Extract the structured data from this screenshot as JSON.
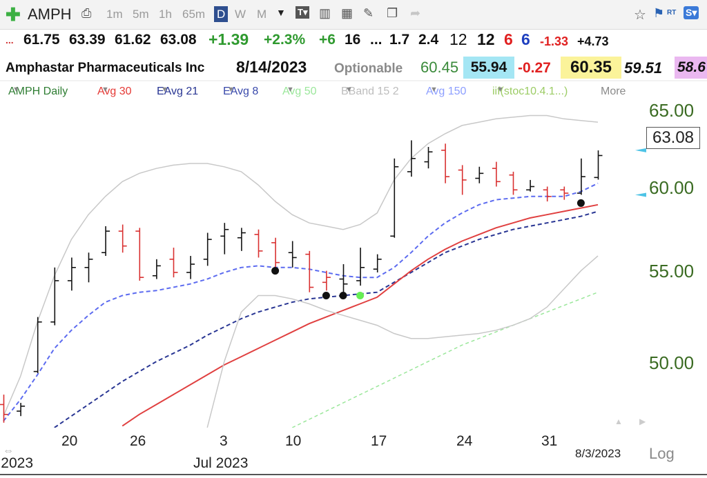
{
  "toolbar": {
    "symbol": "AMPH",
    "timeframes": [
      "1m",
      "5m",
      "1h",
      "65m",
      "D",
      "W",
      "M"
    ],
    "active_timeframe": "D"
  },
  "quote": {
    "prefix": "...",
    "open": "61.75",
    "high": "63.39",
    "low": "61.62",
    "close": "63.08",
    "change": "+1.39",
    "change_pct": "+2.3%",
    "s1": "+6",
    "s2": "16",
    "s3": "...",
    "s4": "1.7",
    "s5": "2.4",
    "s6": "12",
    "s7": "12",
    "s8": "6",
    "s9": "6",
    "s10": "-1.33",
    "s11": "+4.73"
  },
  "info": {
    "company": "Amphastar Pharmaceuticals Inc",
    "date": "8/14/2023",
    "optionable": "Optionable",
    "v1": "60.45",
    "v2": "55.94",
    "v3": "-0.27",
    "v4": "60.35",
    "v5": "59.51",
    "v6": "58.6"
  },
  "legend": [
    {
      "label": "AMPH Daily",
      "color": "#2e7d32"
    },
    {
      "label": "Avg 30",
      "color": "#e53935"
    },
    {
      "label": "EAvg 21",
      "color": "#283593"
    },
    {
      "label": "EAvg 8",
      "color": "#3949ab"
    },
    {
      "label": "Avg 50",
      "color": "#9be79b"
    },
    {
      "label": "BBand 15 2",
      "color": "#bdbdbd"
    },
    {
      "label": "Avg 150",
      "color": "#8c9eff"
    },
    {
      "label": "iif(stoc10.4.1...)",
      "color": "#9ccc65"
    },
    {
      "label": "More",
      "color": "#8a8a8a"
    }
  ],
  "chart_data": {
    "type": "ohlc",
    "y_ticks": [
      "65.00",
      "60.00",
      "55.00",
      "50.00"
    ],
    "ylim": [
      46.6,
      66.4
    ],
    "price_axis_label": "63.08",
    "x_tick_labels": [
      {
        "label": "20",
        "index": 3
      },
      {
        "label": "26",
        "index": 7
      },
      {
        "label": "3",
        "index": 12
      },
      {
        "label": "10",
        "index": 16
      },
      {
        "label": "17",
        "index": 21
      },
      {
        "label": "24",
        "index": 26
      },
      {
        "label": "31",
        "index": 31
      }
    ],
    "month_labels": [
      "2023",
      "Jul 2023"
    ],
    "date_box": "8/3/2023",
    "scale_label": "Log",
    "bars": [
      {
        "o": 48.0,
        "h": 48.6,
        "l": 46.9,
        "c": 47.4,
        "down": true
      },
      {
        "o": 47.6,
        "h": 48.1,
        "l": 47.3,
        "c": 47.9,
        "down": false
      },
      {
        "o": 50.0,
        "h": 53.3,
        "l": 49.9,
        "c": 53.0,
        "down": false
      },
      {
        "o": 53.0,
        "h": 56.3,
        "l": 52.8,
        "c": 55.5,
        "down": false
      },
      {
        "o": 55.5,
        "h": 56.9,
        "l": 54.9,
        "c": 56.3,
        "down": false
      },
      {
        "o": 56.3,
        "h": 57.2,
        "l": 55.4,
        "c": 56.8,
        "down": false
      },
      {
        "o": 57.2,
        "h": 58.8,
        "l": 57.0,
        "c": 58.5,
        "down": false
      },
      {
        "o": 58.5,
        "h": 58.9,
        "l": 57.2,
        "c": 57.6,
        "down": true
      },
      {
        "o": 58.5,
        "h": 58.7,
        "l": 55.5,
        "c": 55.7,
        "down": true
      },
      {
        "o": 55.8,
        "h": 56.8,
        "l": 55.6,
        "c": 56.4,
        "down": false
      },
      {
        "o": 56.8,
        "h": 57.5,
        "l": 55.7,
        "c": 56.0,
        "down": true
      },
      {
        "o": 56.0,
        "h": 57.0,
        "l": 55.6,
        "c": 56.5,
        "down": false
      },
      {
        "o": 56.8,
        "h": 58.4,
        "l": 56.4,
        "c": 58.0,
        "down": false
      },
      {
        "o": 58.2,
        "h": 59.0,
        "l": 57.1,
        "c": 58.6,
        "down": false
      },
      {
        "o": 58.1,
        "h": 58.7,
        "l": 57.3,
        "c": 58.4,
        "down": false
      },
      {
        "o": 58.3,
        "h": 58.6,
        "l": 56.9,
        "c": 57.3,
        "down": true
      },
      {
        "o": 57.8,
        "h": 58.1,
        "l": 56.1,
        "c": 56.6,
        "down": true
      },
      {
        "o": 57.2,
        "h": 57.9,
        "l": 56.3,
        "c": 56.9,
        "down": false
      },
      {
        "o": 57.1,
        "h": 57.3,
        "l": 54.8,
        "c": 55.1,
        "down": true
      },
      {
        "o": 55.4,
        "h": 56.1,
        "l": 54.9,
        "c": 55.7,
        "down": true
      },
      {
        "o": 55.6,
        "h": 56.5,
        "l": 54.8,
        "c": 55.3,
        "down": false
      },
      {
        "o": 55.5,
        "h": 57.5,
        "l": 55.2,
        "c": 56.3,
        "down": false
      },
      {
        "o": 56.2,
        "h": 57.1,
        "l": 56.0,
        "c": 56.8,
        "down": false
      },
      {
        "o": 58.2,
        "h": 62.9,
        "l": 58.1,
        "c": 62.4,
        "down": false
      },
      {
        "o": 62.1,
        "h": 64.0,
        "l": 61.8,
        "c": 62.9,
        "down": false
      },
      {
        "o": 62.7,
        "h": 63.6,
        "l": 62.3,
        "c": 63.3,
        "down": false
      },
      {
        "o": 63.4,
        "h": 63.8,
        "l": 61.4,
        "c": 61.8,
        "down": true
      },
      {
        "o": 62.2,
        "h": 62.5,
        "l": 60.7,
        "c": 61.6,
        "down": true
      },
      {
        "o": 61.7,
        "h": 62.4,
        "l": 61.4,
        "c": 62.0,
        "down": false
      },
      {
        "o": 62.3,
        "h": 62.7,
        "l": 61.2,
        "c": 61.5,
        "down": true
      },
      {
        "o": 61.9,
        "h": 62.1,
        "l": 60.7,
        "c": 61.0,
        "down": true
      },
      {
        "o": 61.0,
        "h": 61.6,
        "l": 60.9,
        "c": 61.2,
        "down": false
      },
      {
        "o": 61.0,
        "h": 61.2,
        "l": 60.3,
        "c": 60.6,
        "down": true
      },
      {
        "o": 61.0,
        "h": 61.2,
        "l": 60.4,
        "c": 60.8,
        "down": true
      },
      {
        "o": 60.8,
        "h": 62.9,
        "l": 60.7,
        "c": 61.8,
        "down": false
      },
      {
        "o": 61.75,
        "h": 63.39,
        "l": 61.62,
        "c": 63.08,
        "down": false
      }
    ],
    "series": [
      {
        "key": "eavg8",
        "color": "#5c6bf0",
        "dash": "6,4",
        "width": 2,
        "values": [
          47.0,
          48.3,
          49.8,
          51.4,
          52.5,
          53.4,
          54.2,
          54.6,
          54.8,
          54.9,
          55.1,
          55.3,
          55.6,
          56.0,
          56.3,
          56.4,
          56.3,
          56.3,
          56.2,
          56.0,
          55.8,
          55.7,
          55.7,
          56.3,
          57.2,
          58.2,
          59.0,
          59.6,
          60.1,
          60.4,
          60.5,
          60.6,
          60.6,
          60.6,
          60.9,
          61.4
        ]
      },
      {
        "key": "eavg21",
        "color": "#283593",
        "dash": "6,4",
        "width": 2,
        "values": [
          null,
          null,
          null,
          46.6,
          47.3,
          48.0,
          48.7,
          49.4,
          50.0,
          50.6,
          51.1,
          51.6,
          52.2,
          52.7,
          53.2,
          53.6,
          53.9,
          54.2,
          54.4,
          54.5,
          54.6,
          54.7,
          54.8,
          55.4,
          56.0,
          56.6,
          57.2,
          57.6,
          58.0,
          58.3,
          58.6,
          58.8,
          59.0,
          59.2,
          59.4,
          59.7
        ]
      },
      {
        "key": "avg30",
        "color": "#e04040",
        "dash": "",
        "width": 2,
        "values": [
          null,
          null,
          null,
          null,
          null,
          null,
          null,
          46.7,
          47.4,
          48.0,
          48.6,
          49.2,
          49.8,
          50.4,
          50.9,
          51.4,
          51.9,
          52.4,
          52.9,
          53.3,
          53.7,
          54.1,
          54.5,
          55.3,
          56.1,
          56.8,
          57.4,
          57.9,
          58.3,
          58.7,
          59.0,
          59.3,
          59.5,
          59.7,
          59.9,
          60.1
        ]
      },
      {
        "key": "avg50",
        "color": "#9be79b",
        "dash": "5,4",
        "width": 1.5,
        "values": [
          null,
          null,
          null,
          null,
          null,
          null,
          null,
          null,
          null,
          null,
          null,
          null,
          null,
          null,
          null,
          null,
          null,
          46.6,
          47.1,
          47.6,
          48.1,
          48.6,
          49.1,
          49.6,
          50.1,
          50.6,
          51.1,
          51.6,
          52.0,
          52.4,
          52.8,
          53.2,
          53.6,
          54.0,
          54.4,
          54.8
        ]
      },
      {
        "key": "bb_upper",
        "color": "#c8c8c8",
        "dash": "",
        "width": 1.5,
        "values": [
          47.3,
          49.7,
          53.0,
          55.8,
          58.0,
          59.5,
          60.6,
          61.5,
          62.0,
          62.3,
          62.5,
          62.6,
          62.6,
          62.4,
          62.1,
          61.3,
          60.3,
          59.5,
          59.0,
          58.8,
          58.6,
          58.9,
          59.6,
          61.6,
          62.9,
          63.8,
          64.4,
          64.9,
          65.1,
          65.3,
          65.4,
          65.5,
          65.5,
          65.3,
          65.2,
          65.1
        ]
      },
      {
        "key": "bb_lower",
        "color": "#c8c8c8",
        "dash": "",
        "width": 1.5,
        "values": [
          null,
          null,
          null,
          null,
          null,
          null,
          null,
          null,
          null,
          null,
          null,
          null,
          46.6,
          50.6,
          53.6,
          54.6,
          54.6,
          54.4,
          54.1,
          53.7,
          53.4,
          53.1,
          52.8,
          52.3,
          52.0,
          52.0,
          52.1,
          52.2,
          52.3,
          52.5,
          52.8,
          53.2,
          53.9,
          55.0,
          56.1,
          57.0
        ]
      }
    ],
    "markers": [
      {
        "index": 16,
        "price": 56.1,
        "color": "#111111"
      },
      {
        "index": 19,
        "price": 54.6,
        "color": "#111111"
      },
      {
        "index": 20,
        "price": 54.6,
        "color": "#111111"
      },
      {
        "index": 21,
        "price": 54.6,
        "color": "#66ee55"
      },
      {
        "index": 34,
        "price": 60.2,
        "color": "#111111"
      }
    ],
    "price_arrows": [
      {
        "price": 63.4,
        "color": "#4dc3e6"
      },
      {
        "price": 60.7,
        "color": "#4dc3e6"
      }
    ]
  }
}
